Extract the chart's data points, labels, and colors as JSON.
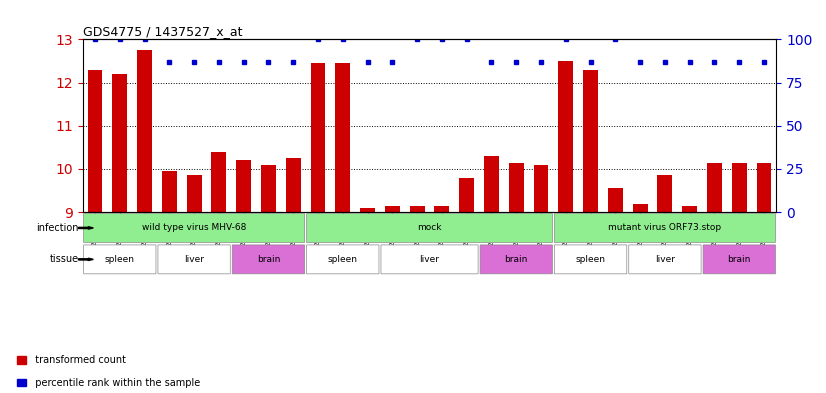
{
  "title": "GDS4775 / 1437527_x_at",
  "samples": [
    "GSM1243471",
    "GSM1243472",
    "GSM1243473",
    "GSM1243462",
    "GSM1243463",
    "GSM1243464",
    "GSM1243480",
    "GSM1243481",
    "GSM1243482",
    "GSM1243468",
    "GSM1243469",
    "GSM1243470",
    "GSM1243458",
    "GSM1243459",
    "GSM1243460",
    "GSM1243461",
    "GSM1243477",
    "GSM1243478",
    "GSM1243479",
    "GSM1243474",
    "GSM1243475",
    "GSM1243476",
    "GSM1243465",
    "GSM1243466",
    "GSM1243467",
    "GSM1243483",
    "GSM1243484",
    "GSM1243485"
  ],
  "transformed_count": [
    12.3,
    12.2,
    12.75,
    9.95,
    9.85,
    10.4,
    10.2,
    10.1,
    10.25,
    12.45,
    12.45,
    9.1,
    9.15,
    9.15,
    9.15,
    9.8,
    10.3,
    10.15,
    10.1,
    12.5,
    12.3,
    9.55,
    9.2,
    9.85,
    9.15,
    10.15,
    10.15,
    10.15
  ],
  "percentile_rank": [
    100,
    100,
    100,
    87,
    87,
    87,
    87,
    87,
    87,
    100,
    100,
    87,
    87,
    100,
    100,
    100,
    87,
    87,
    87,
    100,
    87,
    100,
    87,
    87,
    87,
    87,
    87,
    87
  ],
  "infection_groups": [
    {
      "label": "wild type virus MHV-68",
      "start": 0,
      "end": 9,
      "color": "#90EE90"
    },
    {
      "label": "mock",
      "start": 9,
      "end": 19,
      "color": "#90EE90"
    },
    {
      "label": "mutant virus ORF73.stop",
      "start": 19,
      "end": 28,
      "color": "#90EE90"
    }
  ],
  "tissue_groups": [
    {
      "label": "spleen",
      "start": 0,
      "end": 3,
      "color": "#ffffff"
    },
    {
      "label": "liver",
      "start": 3,
      "end": 6,
      "color": "#ffffff"
    },
    {
      "label": "brain",
      "start": 6,
      "end": 9,
      "color": "#DA70D6"
    },
    {
      "label": "spleen",
      "start": 9,
      "end": 12,
      "color": "#ffffff"
    },
    {
      "label": "liver",
      "start": 12,
      "end": 16,
      "color": "#ffffff"
    },
    {
      "label": "brain",
      "start": 16,
      "end": 19,
      "color": "#DA70D6"
    },
    {
      "label": "spleen",
      "start": 19,
      "end": 22,
      "color": "#ffffff"
    },
    {
      "label": "liver",
      "start": 22,
      "end": 25,
      "color": "#ffffff"
    },
    {
      "label": "brain",
      "start": 25,
      "end": 28,
      "color": "#DA70D6"
    }
  ],
  "bar_color": "#CC0000",
  "dot_color": "#0000CC",
  "ylim_left": [
    9,
    13
  ],
  "ylim_right": [
    0,
    100
  ],
  "yticks_left": [
    9,
    10,
    11,
    12,
    13
  ],
  "yticks_right": [
    0,
    25,
    50,
    75,
    100
  ],
  "background_color": "#ffffff"
}
